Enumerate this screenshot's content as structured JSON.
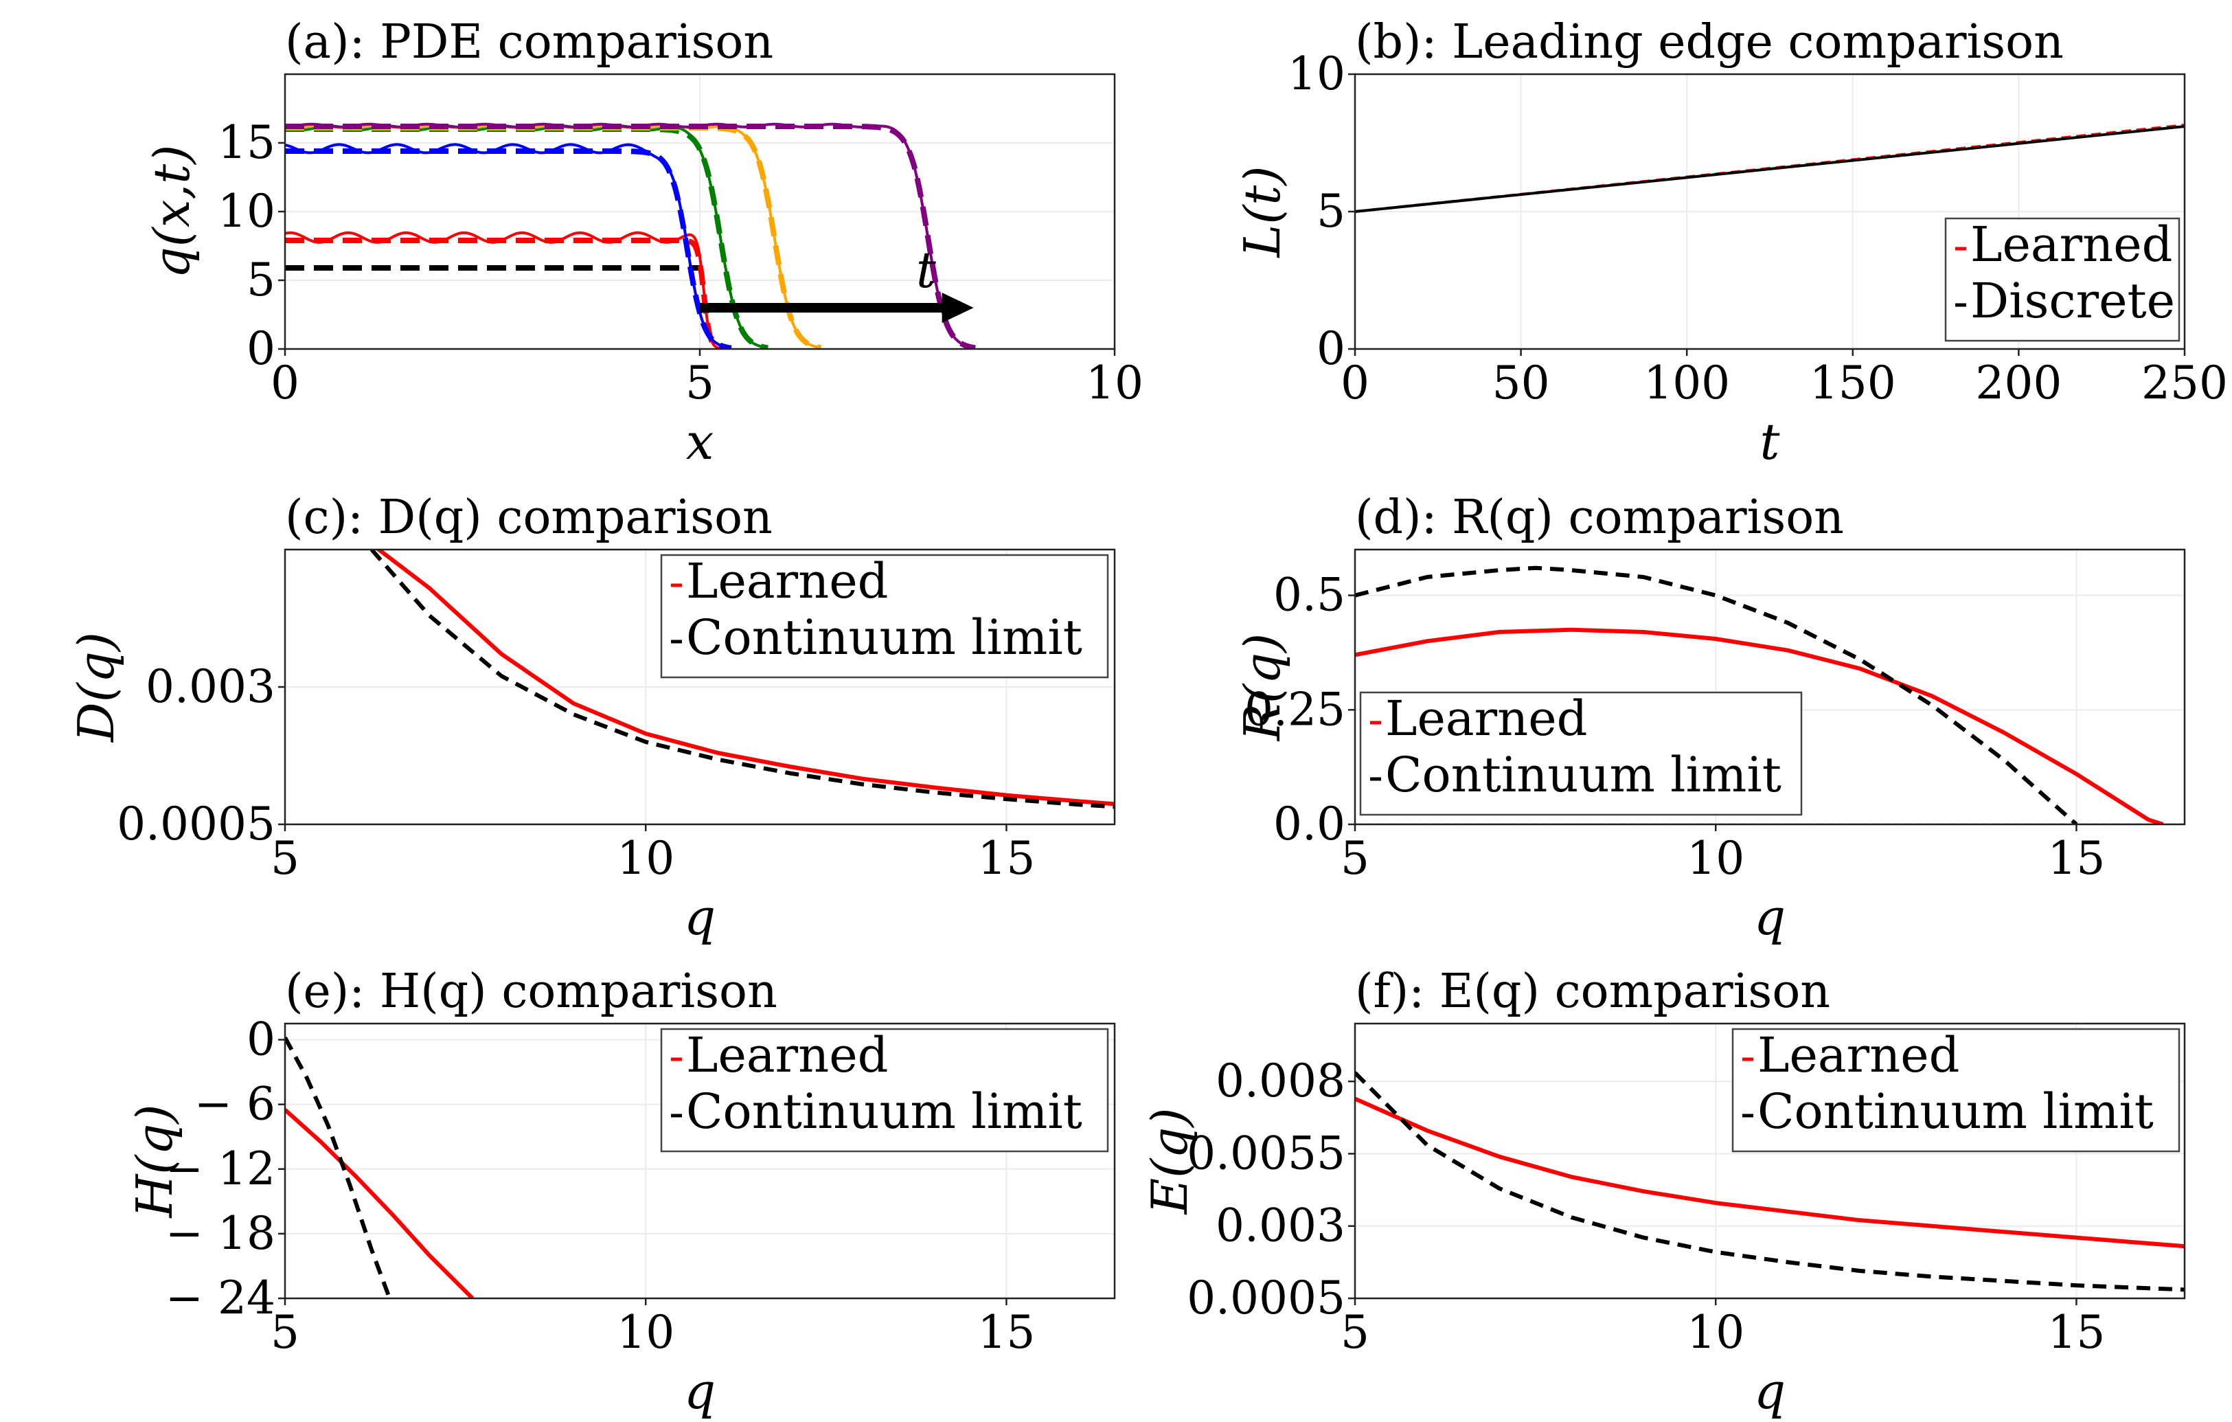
{
  "chart_data": [
    {
      "type": "line",
      "panel": "a",
      "title": "(a): PDE comparison",
      "xlabel": "x",
      "ylabel": "q(x,t)",
      "xlim": [
        0,
        10
      ],
      "ylim": [
        0,
        20
      ],
      "xticks": [
        "0",
        "5",
        "10"
      ],
      "yticks": [
        "0",
        "5",
        "10",
        "15"
      ],
      "xtick_values": [
        0,
        5,
        10
      ],
      "ytick_values": [
        0,
        5,
        10,
        15
      ],
      "grid": true,
      "annotation": "t",
      "arrow": {
        "x_start": 5,
        "x_end": 8.3,
        "y": 3
      },
      "series": [
        {
          "color": "#000000",
          "plateau": 5.9,
          "front": 5.0,
          "width": 0.0,
          "learned_noise": 0.0
        },
        {
          "color": "#ff0000",
          "plateau": 7.9,
          "front": 5.05,
          "width": 0.08,
          "learned_noise": 0.35
        },
        {
          "color": "#0000ff",
          "plateau": 14.4,
          "front": 4.85,
          "width": 0.22,
          "learned_noise": 0.3
        },
        {
          "color": "#008000",
          "plateau": 16.0,
          "front": 5.25,
          "width": 0.24,
          "learned_noise": 0.15
        },
        {
          "color": "#ffa500",
          "plateau": 16.1,
          "front": 5.9,
          "width": 0.24,
          "learned_noise": 0.1
        },
        {
          "color": "#800080",
          "plateau": 16.2,
          "front": 7.75,
          "width": 0.24,
          "learned_noise": 0.1
        }
      ]
    },
    {
      "type": "line",
      "panel": "b",
      "title": "(b): Leading edge comparison",
      "xlabel": "t",
      "ylabel": "L(t)",
      "xlim": [
        0,
        250
      ],
      "ylim": [
        0,
        10
      ],
      "xticks": [
        "0",
        "50",
        "100",
        "150",
        "200",
        "250"
      ],
      "yticks": [
        "0",
        "5",
        "10"
      ],
      "xtick_values": [
        0,
        50,
        100,
        150,
        200,
        250
      ],
      "ytick_values": [
        0,
        5,
        10
      ],
      "grid": true,
      "legend_position": "lower-right",
      "series": [
        {
          "name": "Learned",
          "color": "#ff0000",
          "dashed": true,
          "x": [
            0,
            250
          ],
          "y": [
            5.0,
            8.15
          ]
        },
        {
          "name": "Discrete",
          "color": "#000000",
          "dashed": false,
          "x": [
            0,
            250
          ],
          "y": [
            5.0,
            8.1
          ]
        }
      ]
    },
    {
      "type": "line",
      "panel": "c",
      "title": "(c): D(q) comparison",
      "xlabel": "q",
      "ylabel": "D(q)",
      "xlim": [
        5,
        16.5
      ],
      "ylim": [
        0.0005,
        0.0055
      ],
      "xticks": [
        "5",
        "10",
        "15"
      ],
      "yticks": [
        "0.0005",
        "0.003"
      ],
      "xtick_values": [
        5,
        10,
        15
      ],
      "ytick_values": [
        0.0005,
        0.003
      ],
      "grid": true,
      "legend_position": "top-right",
      "series": [
        {
          "name": "Learned",
          "color": "#ff0000",
          "dashed": false,
          "x": [
            6.2,
            7,
            8,
            9,
            10,
            11,
            12,
            13,
            14,
            15,
            16,
            16.5
          ],
          "y": [
            0.0056,
            0.0048,
            0.0036,
            0.0027,
            0.00215,
            0.0018,
            0.00155,
            0.00133,
            0.00117,
            0.00103,
            0.00092,
            0.00087
          ]
        },
        {
          "name": "Continuum limit",
          "color": "#000000",
          "dashed": true,
          "x": [
            6.2,
            7,
            8,
            9,
            10,
            11,
            12,
            13,
            14,
            15,
            16,
            16.5
          ],
          "y": [
            0.0055,
            0.0043,
            0.0032,
            0.0025,
            0.002,
            0.00168,
            0.00143,
            0.00123,
            0.00108,
            0.00096,
            0.00086,
            0.00082
          ]
        }
      ]
    },
    {
      "type": "line",
      "panel": "d",
      "title": "(d): R(q) comparison",
      "xlabel": "q",
      "ylabel": "R(q)",
      "xlim": [
        5,
        16.5
      ],
      "ylim": [
        0,
        0.6
      ],
      "xticks": [
        "5",
        "10",
        "15"
      ],
      "yticks": [
        "0.0",
        "0.25",
        "0.5"
      ],
      "xtick_values": [
        5,
        10,
        15
      ],
      "ytick_values": [
        0,
        0.25,
        0.5
      ],
      "grid": true,
      "legend_position": "lower-left",
      "series": [
        {
          "name": "Learned",
          "color": "#ff0000",
          "dashed": false,
          "x": [
            5,
            6,
            7,
            8,
            9,
            10,
            11,
            12,
            13,
            14,
            15,
            16,
            16.2
          ],
          "y": [
            0.37,
            0.4,
            0.42,
            0.425,
            0.42,
            0.405,
            0.38,
            0.34,
            0.28,
            0.2,
            0.11,
            0.01,
            0.0
          ]
        },
        {
          "name": "Continuum limit",
          "color": "#000000",
          "dashed": true,
          "x": [
            5,
            6,
            7,
            7.5,
            8,
            9,
            10,
            11,
            12,
            13,
            14,
            15
          ],
          "y": [
            0.5,
            0.54,
            0.555,
            0.56,
            0.555,
            0.54,
            0.5,
            0.44,
            0.36,
            0.26,
            0.14,
            0.0
          ]
        }
      ]
    },
    {
      "type": "line",
      "panel": "e",
      "title": "(e): H(q) comparison",
      "xlabel": "q",
      "ylabel": "H(q)",
      "xlim": [
        5,
        16.5
      ],
      "ylim": [
        -24,
        1.5
      ],
      "xticks": [
        "5",
        "10",
        "15"
      ],
      "yticks": [
        "0",
        "− 6",
        "− 12",
        "− 18",
        "− 24"
      ],
      "xtick_values": [
        5,
        10,
        15
      ],
      "ytick_values": [
        0,
        -6,
        -12,
        -18,
        -24
      ],
      "grid": true,
      "legend_position": "top-right",
      "series": [
        {
          "name": "Learned",
          "color": "#ff0000",
          "dashed": false,
          "x": [
            5,
            5.5,
            6,
            6.5,
            7,
            7.6
          ],
          "y": [
            -6.5,
            -9.5,
            -12.8,
            -16.3,
            -20,
            -24
          ]
        },
        {
          "name": "Continuum limit",
          "color": "#000000",
          "dashed": true,
          "x": [
            5,
            5.3,
            5.6,
            5.9,
            6.2,
            6.45
          ],
          "y": [
            0.2,
            -3.5,
            -8,
            -13.5,
            -19.5,
            -24
          ]
        }
      ]
    },
    {
      "type": "line",
      "panel": "f",
      "title": "(f): E(q) comparison",
      "xlabel": "q",
      "ylabel": "E(q)",
      "xlim": [
        5,
        16.5
      ],
      "ylim": [
        0.0005,
        0.01
      ],
      "xticks": [
        "5",
        "10",
        "15"
      ],
      "yticks": [
        "0.0005",
        "0.003",
        "0.0055",
        "0.008"
      ],
      "xtick_values": [
        5,
        10,
        15
      ],
      "ytick_values": [
        0.0005,
        0.003,
        0.0055,
        0.008
      ],
      "grid": true,
      "legend_position": "top-right",
      "series": [
        {
          "name": "Learned",
          "color": "#ff0000",
          "dashed": false,
          "x": [
            5,
            6,
            7,
            8,
            9,
            10,
            11,
            12,
            13,
            14,
            15,
            16,
            16.5
          ],
          "y": [
            0.0074,
            0.0063,
            0.0054,
            0.0047,
            0.0042,
            0.0038,
            0.0035,
            0.0032,
            0.003,
            0.0028,
            0.0026,
            0.0024,
            0.0023
          ]
        },
        {
          "name": "Continuum limit",
          "color": "#000000",
          "dashed": true,
          "x": [
            5,
            6,
            7,
            8,
            9,
            10,
            11,
            12,
            13,
            14,
            15,
            16,
            16.5
          ],
          "y": [
            0.0083,
            0.0058,
            0.0043,
            0.0033,
            0.0026,
            0.0021,
            0.00175,
            0.00145,
            0.00125,
            0.0011,
            0.00095,
            0.00085,
            0.0008
          ]
        }
      ]
    }
  ]
}
